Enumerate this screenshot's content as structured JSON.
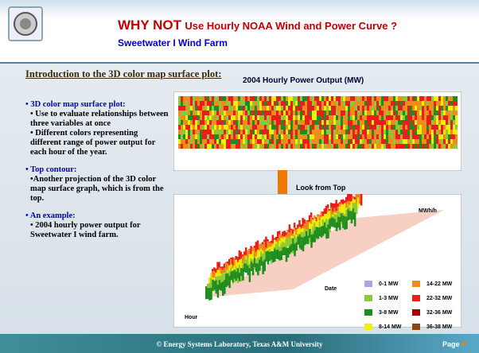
{
  "header": {
    "title_lead": "WHY NOT",
    "title_rest": "Use Hourly NOAA Wind and Power Curve ?",
    "subtitle": "Sweetwater I Wind Farm"
  },
  "section_heading": "Introduction to the 3D color map surface plot:",
  "bullets": [
    {
      "head": "3D color map surface plot:",
      "lines": [
        "• Use to evaluate relationships between three variables at once",
        "• Different colors representing different range of power output for each hour of the year."
      ]
    },
    {
      "head": "Top contour:",
      "lines": [
        "•Another projection of the 3D color map surface graph, which is from the top."
      ]
    },
    {
      "head": "An example:",
      "lines": [
        "• 2004 hourly power output for Sweetwater I wind farm."
      ]
    }
  ],
  "figure": {
    "title": "2004 Hourly Power Output (MW)",
    "arrow_label": "Look from Top",
    "z_label": "MWh/h",
    "date_label": "Date",
    "hour_label": "Hour",
    "legend": [
      {
        "label": "0-1 MW",
        "color": "#b49ee6"
      },
      {
        "label": "14-22 MW",
        "color": "#f08c1e"
      },
      {
        "label": "1-3 MW",
        "color": "#8cc83c"
      },
      {
        "label": "22-32 MW",
        "color": "#e61e1e"
      },
      {
        "label": "3-8 MW",
        "color": "#1e8c1e"
      },
      {
        "label": "32-36 MW",
        "color": "#a00000"
      },
      {
        "label": "8-14 MW",
        "color": "#f0f000"
      },
      {
        "label": "36-38 MW",
        "color": "#8c4614"
      }
    ]
  },
  "footer": {
    "text": "© Energy Systems Laboratory, Texas A&M University",
    "page_label": "Page",
    "page_number": "6"
  }
}
